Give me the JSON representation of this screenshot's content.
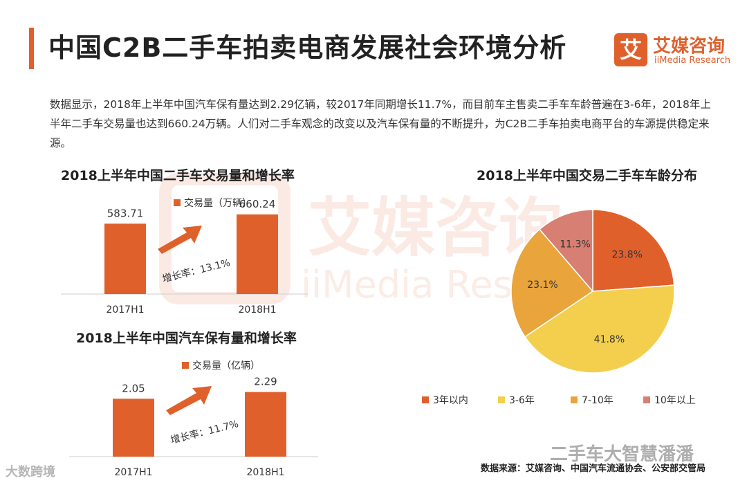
{
  "header": {
    "title": "中国C2B二手车拍卖电商发展社会环境分析",
    "logo_mark": "艾",
    "logo_cn": "艾媒咨询",
    "logo_en": "iiMedia Research"
  },
  "intro": "数据显示，2018年上半年中国汽车保有量达到2.29亿辆，较2017年同期增长11.7%，而目前车主售卖二手车车龄普遍在3-6年，2018年上半年二手车交易量也达到660.24万辆。人们对二手车观念的改变以及汽车保有量的不断提升，为C2B二手车拍卖电商平台的车源提供稳定来源。",
  "watermark": {
    "cn": "艾媒咨询",
    "en": "iiMedia Research"
  },
  "colors": {
    "accent": "#e0602c",
    "yellow": "#f3cf4d",
    "amber": "#e9a43b",
    "rose": "#d67f72"
  },
  "chart_data": [
    {
      "type": "bar",
      "title": "2018上半年中国二手车交易量和增长率",
      "categories": [
        "2017H1",
        "2018H1"
      ],
      "series": [
        {
          "name": "交易量（万辆）",
          "values": [
            583.71,
            660.24
          ]
        }
      ],
      "value_labels": [
        "583.71",
        "660.24"
      ],
      "annotation": "增长率：13.1%",
      "legend_position": "top"
    },
    {
      "type": "bar",
      "title": "2018上半年中国汽车保有量和增长率",
      "categories": [
        "2017H1",
        "2018H1"
      ],
      "series": [
        {
          "name": "交易量（亿辆）",
          "values": [
            2.05,
            2.29
          ]
        }
      ],
      "value_labels": [
        "2.05",
        "2.29"
      ],
      "annotation": "增长率：11.7%",
      "legend_position": "top"
    },
    {
      "type": "pie",
      "title": "2018上半年中国交易二手车车龄分布",
      "slices": [
        {
          "label": "3年以内",
          "value": 23.8,
          "text": "23.8%",
          "color": "#e0602c"
        },
        {
          "label": "3-6年",
          "value": 41.8,
          "text": "41.8%",
          "color": "#f3cf4d"
        },
        {
          "label": "7-10年",
          "value": 23.1,
          "text": "23.1%",
          "color": "#e9a43b"
        },
        {
          "label": "10年以上",
          "value": 11.3,
          "text": "11.3%",
          "color": "#d67f72"
        }
      ],
      "legend_position": "bottom"
    }
  ],
  "source": "数据来源：艾媒咨询、中国汽车流通协会、公安部交管局",
  "corner_left": "大数跨境",
  "corner_right": "二手车大智慧潘潘"
}
